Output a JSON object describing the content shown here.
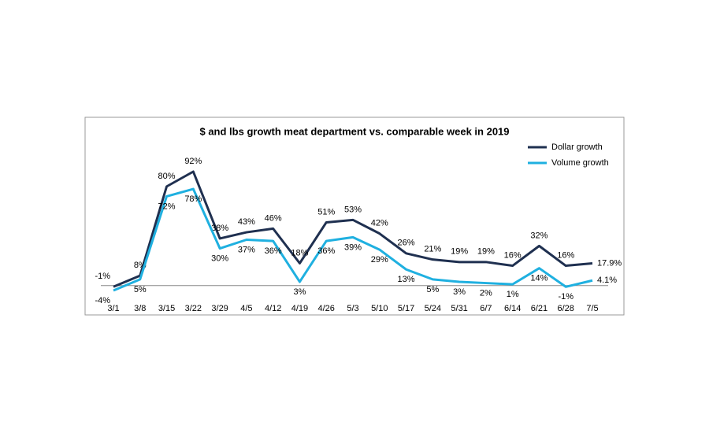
{
  "chart_data": {
    "type": "line",
    "title": "$ and lbs growth meat department vs. comparable week in 2019",
    "categories": [
      "3/1",
      "3/8",
      "3/15",
      "3/22",
      "3/29",
      "4/5",
      "4/12",
      "4/19",
      "4/26",
      "5/3",
      "5/10",
      "5/17",
      "5/24",
      "5/31",
      "6/7",
      "6/14",
      "6/21",
      "6/28",
      "7/5"
    ],
    "series": [
      {
        "name": "Dollar growth",
        "color": "#1f3050",
        "values": [
          -1,
          8,
          80,
          92,
          38,
          43,
          46,
          18,
          51,
          53,
          42,
          26,
          21,
          19,
          19,
          16,
          32,
          16,
          17.9
        ],
        "value_labels": [
          "-1%",
          "8%",
          "80%",
          "92%",
          "38%",
          "43%",
          "46%",
          "18%",
          "51%",
          "53%",
          "42%",
          "26%",
          "21%",
          "19%",
          "19%",
          "16%",
          "32%",
          "16%",
          "17.9%"
        ]
      },
      {
        "name": "Volume growth",
        "color": "#1fb0e0",
        "values": [
          -4,
          5,
          72,
          78,
          30,
          37,
          36,
          3,
          36,
          39,
          29,
          13,
          5,
          3,
          2,
          1,
          14,
          -1,
          4.1
        ],
        "value_labels": [
          "-4%",
          "5%",
          "72%",
          "78%",
          "30%",
          "37%",
          "36%",
          "3%",
          "36%",
          "39%",
          "29%",
          "13%",
          "5%",
          "3%",
          "2%",
          "1%",
          "14%",
          "-1%",
          "4.1%"
        ]
      }
    ],
    "legend": "top-right"
  }
}
